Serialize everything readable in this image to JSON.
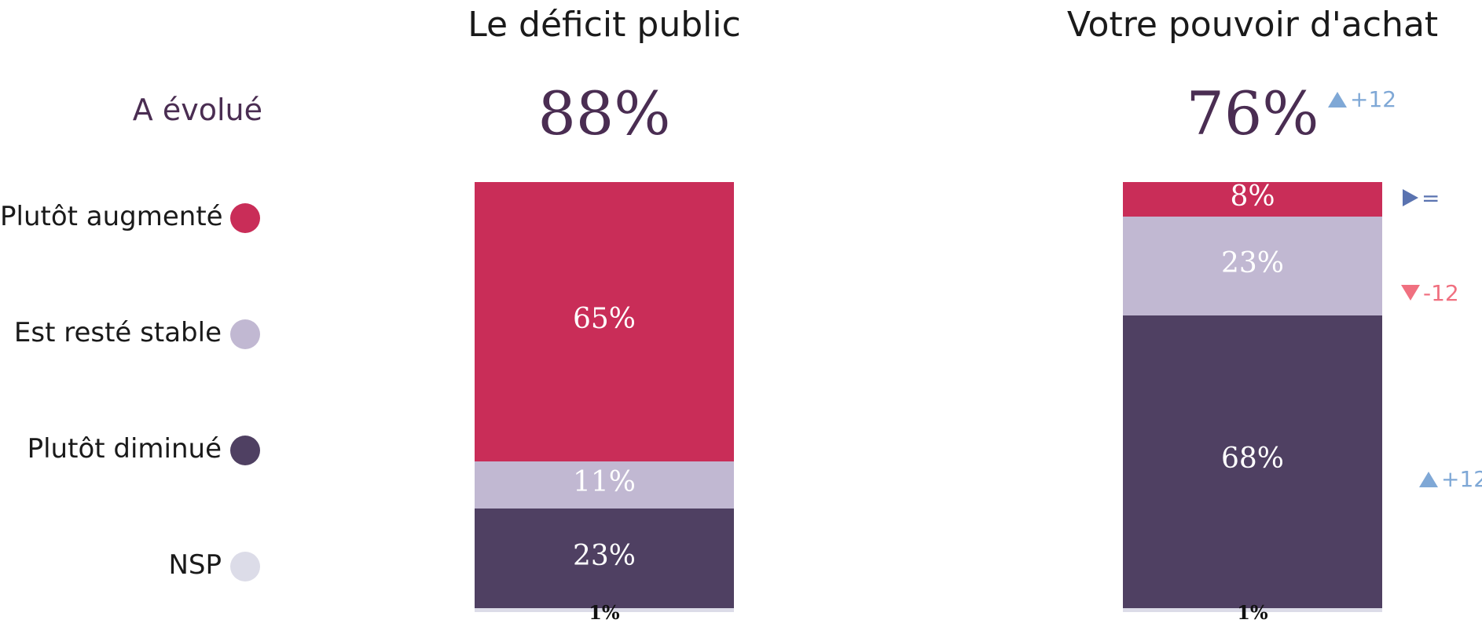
{
  "colors": {
    "augmente": "#c92d58",
    "stable": "#c1b8d2",
    "diminue": "#4f4062",
    "nsp": "#dcdce8",
    "up": "#7fa8d6",
    "down": "#f07080",
    "equal": "#5a73b0"
  },
  "legend": {
    "evolue_label": "A évolué",
    "items": [
      {
        "label": "Plutôt augmenté",
        "color": "#c92d58"
      },
      {
        "label": "Est resté stable",
        "color": "#c1b8d2"
      },
      {
        "label": "Plutôt diminué",
        "color": "#4f4062"
      },
      {
        "label": "NSP",
        "color": "#dcdce8"
      }
    ]
  },
  "chart_data": {
    "type": "bar",
    "stacked": true,
    "categories": [
      "Le déficit public",
      "Votre pouvoir d'achat"
    ],
    "series": [
      {
        "name": "Plutôt augmenté",
        "values": [
          65,
          8
        ],
        "labels": [
          "65%",
          "8%"
        ]
      },
      {
        "name": "Est resté stable",
        "values": [
          11,
          23
        ],
        "labels": [
          "11%",
          "23%"
        ]
      },
      {
        "name": "Plutôt diminué",
        "values": [
          23,
          68
        ],
        "labels": [
          "23%",
          "68%"
        ]
      },
      {
        "name": "NSP",
        "values": [
          1,
          1
        ],
        "labels": [
          "1%",
          "1%"
        ]
      }
    ],
    "evolue_totals": [
      "88%",
      "76%"
    ],
    "changes": {
      "Votre pouvoir d'achat": {
        "evolue": {
          "direction": "up",
          "text": "+12"
        },
        "Plutôt augmenté": {
          "direction": "equal",
          "text": "="
        },
        "Est resté stable": {
          "direction": "down",
          "text": "-12"
        },
        "Plutôt diminué": {
          "direction": "up",
          "text": "+12"
        }
      }
    }
  }
}
